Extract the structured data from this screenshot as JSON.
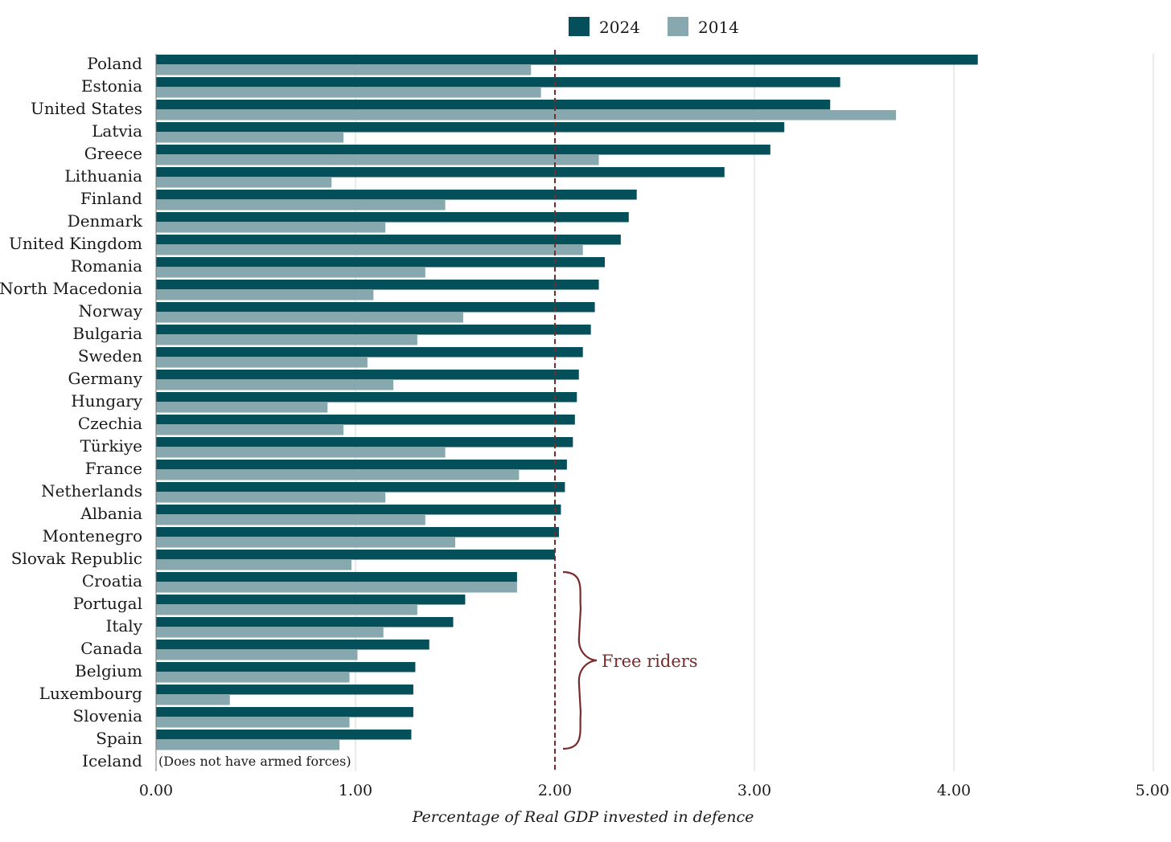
{
  "chart_data": {
    "type": "bar",
    "orientation": "horizontal",
    "title": "",
    "xlabel": "Percentage of Real GDP invested in defence",
    "ylabel": "",
    "xlim": [
      0,
      5
    ],
    "x_ticks": [
      "0.00",
      "1.00",
      "2.00",
      "3.00",
      "4.00",
      "5.00"
    ],
    "grid": true,
    "legend_position": "top",
    "colors": {
      "2024": "#04505a",
      "2014": "#86a8ae",
      "reference": "#7a2a2a"
    },
    "categories": [
      "Poland",
      "Estonia",
      "United States",
      "Latvia",
      "Greece",
      "Lithuania",
      "Finland",
      "Denmark",
      "United Kingdom",
      "Romania",
      "North Macedonia",
      "Norway",
      "Bulgaria",
      "Sweden",
      "Germany",
      "Hungary",
      "Czechia",
      "Türkiye",
      "France",
      "Netherlands",
      "Albania",
      "Montenegro",
      "Slovak Republic",
      "Croatia",
      "Portugal",
      "Italy",
      "Canada",
      "Belgium",
      "Luxembourg",
      "Slovenia",
      "Spain",
      "Iceland"
    ],
    "series": [
      {
        "name": "2024",
        "values": [
          4.12,
          3.43,
          3.38,
          3.15,
          3.08,
          2.85,
          2.41,
          2.37,
          2.33,
          2.25,
          2.22,
          2.2,
          2.18,
          2.14,
          2.12,
          2.11,
          2.1,
          2.09,
          2.06,
          2.05,
          2.03,
          2.02,
          2.0,
          1.81,
          1.55,
          1.49,
          1.37,
          1.3,
          1.29,
          1.29,
          1.28,
          null
        ]
      },
      {
        "name": "2014",
        "values": [
          1.88,
          1.93,
          3.71,
          0.94,
          2.22,
          0.88,
          1.45,
          1.15,
          2.14,
          1.35,
          1.09,
          1.54,
          1.31,
          1.06,
          1.19,
          0.86,
          0.94,
          1.45,
          1.82,
          1.15,
          1.35,
          1.5,
          0.98,
          1.81,
          1.31,
          1.14,
          1.01,
          0.97,
          0.37,
          0.97,
          0.92,
          null
        ]
      }
    ],
    "reference_line": {
      "value": 2.0
    },
    "annotations": {
      "free_riders": "Free riders",
      "iceland_note": "(Does not have armed forces)"
    }
  }
}
